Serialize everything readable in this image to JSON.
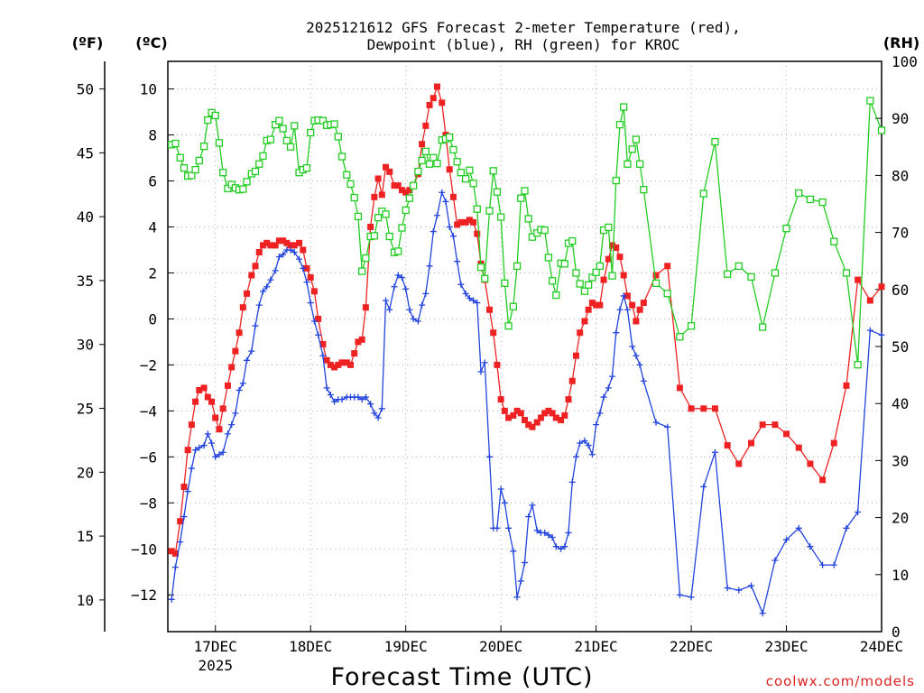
{
  "chart_data": {
    "type": "line",
    "title_line1": "2025121612 GFS Forecast 2-meter Temperature (red),",
    "title_line2": "Dewpoint (blue), RH (green) for KROC",
    "xlabel": "Forecast Time (UTC)",
    "watermark": "coolwx.com/models",
    "left_axis_f_label": "(ºF)",
    "left_axis_c_label": "(ºC)",
    "right_axis_label": "(RH)",
    "x_range_days": [
      16.5,
      24.0
    ],
    "y_range_c": [
      -13.6,
      11.2
    ],
    "y_range_rh": [
      0,
      100
    ],
    "grid": true,
    "x_ticks": [
      {
        "day": 17,
        "label": "17DEC",
        "sub": "2025"
      },
      {
        "day": 18,
        "label": "18DEC",
        "sub": ""
      },
      {
        "day": 19,
        "label": "19DEC",
        "sub": ""
      },
      {
        "day": 20,
        "label": "20DEC",
        "sub": ""
      },
      {
        "day": 21,
        "label": "21DEC",
        "sub": ""
      },
      {
        "day": 22,
        "label": "22DEC",
        "sub": ""
      },
      {
        "day": 23,
        "label": "23DEC",
        "sub": ""
      },
      {
        "day": 24,
        "label": "24DEC",
        "sub": ""
      }
    ],
    "c_ticks": [
      "10",
      "8",
      "6",
      "4",
      "2",
      "0",
      "−2",
      "−4",
      "−6",
      "−8",
      "−10",
      "−12"
    ],
    "f_ticks": [
      "50",
      "45",
      "40",
      "35",
      "30",
      "25",
      "20",
      "15",
      "10"
    ],
    "rh_ticks": [
      "100",
      "90",
      "80",
      "70",
      "60",
      "50",
      "40",
      "30",
      "20",
      "10",
      "0"
    ],
    "series": [
      {
        "name": "Temperature",
        "unit": "C",
        "color": "#ee2222",
        "marker": "filled-square",
        "x": [
          16.54,
          16.58,
          16.63,
          16.67,
          16.71,
          16.75,
          16.79,
          16.83,
          16.88,
          16.92,
          16.96,
          17.0,
          17.04,
          17.08,
          17.13,
          17.17,
          17.21,
          17.25,
          17.29,
          17.33,
          17.38,
          17.42,
          17.46,
          17.5,
          17.54,
          17.58,
          17.63,
          17.67,
          17.71,
          17.75,
          17.79,
          17.83,
          17.88,
          17.92,
          17.96,
          18.0,
          18.04,
          18.08,
          18.13,
          18.17,
          18.21,
          18.25,
          18.29,
          18.33,
          18.38,
          18.42,
          18.46,
          18.5,
          18.54,
          18.58,
          18.63,
          18.67,
          18.71,
          18.75,
          18.79,
          18.83,
          18.88,
          18.92,
          18.96,
          19.0,
          19.04,
          19.08,
          19.13,
          19.17,
          19.21,
          19.25,
          19.29,
          19.33,
          19.38,
          19.42,
          19.46,
          19.5,
          19.54,
          19.58,
          19.63,
          19.67,
          19.71,
          19.75,
          19.79,
          19.83,
          19.88,
          19.92,
          19.96,
          20.0,
          20.04,
          20.08,
          20.13,
          20.17,
          20.21,
          20.25,
          20.29,
          20.33,
          20.38,
          20.42,
          20.46,
          20.5,
          20.54,
          20.58,
          20.63,
          20.67,
          20.71,
          20.75,
          20.79,
          20.83,
          20.88,
          20.92,
          20.96,
          21.0,
          21.04,
          21.08,
          21.13,
          21.17,
          21.21,
          21.25,
          21.29,
          21.33,
          21.38,
          21.42,
          21.46,
          21.5,
          21.63,
          21.75,
          21.88,
          22.0,
          22.13,
          22.25,
          22.38,
          22.5,
          22.63,
          22.75,
          22.88,
          23.0,
          23.13,
          23.25,
          23.38,
          23.5,
          23.63,
          23.75,
          23.88,
          24.0
        ],
        "values": [
          -10.1,
          -10.2,
          -8.8,
          -7.3,
          -5.7,
          -4.6,
          -3.6,
          -3.1,
          -3.0,
          -3.4,
          -3.6,
          -4.3,
          -4.8,
          -3.9,
          -2.9,
          -2.1,
          -1.4,
          -0.6,
          0.5,
          1.1,
          1.9,
          2.3,
          2.9,
          3.2,
          3.3,
          3.2,
          3.2,
          3.4,
          3.4,
          3.3,
          3.2,
          3.2,
          3.3,
          3.0,
          2.2,
          1.8,
          1.2,
          0.0,
          -1.1,
          -1.8,
          -2.0,
          -2.1,
          -2.0,
          -1.9,
          -1.9,
          -2.0,
          -1.5,
          -1.0,
          -0.9,
          0.5,
          4.0,
          5.3,
          6.1,
          5.4,
          6.6,
          6.4,
          5.8,
          5.8,
          5.6,
          5.5,
          5.6,
          5.8,
          6.3,
          7.6,
          8.4,
          9.3,
          9.6,
          10.1,
          9.4,
          8.0,
          6.5,
          5.3,
          4.1,
          4.2,
          4.2,
          4.3,
          4.2,
          3.7,
          2.4,
          1.7,
          0.4,
          -0.6,
          -2.0,
          -3.5,
          -4.0,
          -4.3,
          -4.2,
          -4.0,
          -4.1,
          -4.4,
          -4.6,
          -4.7,
          -4.5,
          -4.3,
          -4.1,
          -4.0,
          -4.1,
          -4.3,
          -4.4,
          -4.2,
          -3.5,
          -2.7,
          -1.6,
          -0.6,
          -0.1,
          0.4,
          0.7,
          0.6,
          0.6,
          1.7,
          2.6,
          3.2,
          3.1,
          2.7,
          1.9,
          1.0,
          0.6,
          -0.1,
          0.4,
          0.7,
          1.9,
          2.3,
          -3.0,
          -3.9,
          -3.9,
          -3.9,
          -5.5,
          -6.3,
          -5.4,
          -4.6,
          -4.6,
          -5.0,
          -5.6,
          -6.3,
          -7.0,
          -5.4,
          -2.9,
          1.7,
          0.8,
          1.4
        ]
      },
      {
        "name": "Dewpoint",
        "unit": "C",
        "color": "#2244dd",
        "marker": "plus",
        "x": [
          16.54,
          16.58,
          16.63,
          16.67,
          16.71,
          16.75,
          16.79,
          16.83,
          16.88,
          16.92,
          16.96,
          17.0,
          17.04,
          17.08,
          17.13,
          17.17,
          17.21,
          17.25,
          17.29,
          17.33,
          17.38,
          17.42,
          17.46,
          17.5,
          17.54,
          17.58,
          17.63,
          17.67,
          17.71,
          17.75,
          17.79,
          17.83,
          17.88,
          17.92,
          17.96,
          18.0,
          18.04,
          18.08,
          18.13,
          18.17,
          18.21,
          18.25,
          18.29,
          18.33,
          18.38,
          18.42,
          18.46,
          18.5,
          18.54,
          18.58,
          18.63,
          18.67,
          18.71,
          18.75,
          18.79,
          18.83,
          18.88,
          18.92,
          18.96,
          19.0,
          19.04,
          19.08,
          19.13,
          19.17,
          19.21,
          19.25,
          19.29,
          19.33,
          19.38,
          19.42,
          19.46,
          19.5,
          19.54,
          19.58,
          19.63,
          19.67,
          19.71,
          19.75,
          19.79,
          19.83,
          19.88,
          19.92,
          19.96,
          20.0,
          20.04,
          20.08,
          20.13,
          20.17,
          20.21,
          20.25,
          20.29,
          20.33,
          20.38,
          20.42,
          20.46,
          20.5,
          20.54,
          20.58,
          20.63,
          20.67,
          20.71,
          20.75,
          20.79,
          20.83,
          20.88,
          20.92,
          20.96,
          21.0,
          21.04,
          21.08,
          21.13,
          21.17,
          21.21,
          21.25,
          21.29,
          21.33,
          21.38,
          21.42,
          21.46,
          21.5,
          21.63,
          21.75,
          21.88,
          22.0,
          22.13,
          22.25,
          22.38,
          22.5,
          22.63,
          22.75,
          22.88,
          23.0,
          23.13,
          23.25,
          23.38,
          23.5,
          23.63,
          23.75,
          23.88,
          24.0
        ],
        "values": [
          -12.2,
          -10.8,
          -9.7,
          -8.6,
          -7.5,
          -6.5,
          -5.7,
          -5.6,
          -5.5,
          -5.0,
          -5.4,
          -6.0,
          -5.9,
          -5.8,
          -5.0,
          -4.6,
          -4.1,
          -3.1,
          -2.8,
          -1.8,
          -1.4,
          -0.3,
          0.6,
          1.2,
          1.4,
          1.7,
          2.1,
          2.7,
          2.8,
          3.0,
          3.0,
          2.9,
          2.6,
          2.2,
          1.6,
          0.7,
          -0.1,
          -0.7,
          -1.6,
          -3.0,
          -3.3,
          -3.6,
          -3.5,
          -3.5,
          -3.4,
          -3.4,
          -3.4,
          -3.4,
          -3.5,
          -3.4,
          -3.7,
          -4.1,
          -4.3,
          -3.9,
          0.8,
          0.4,
          1.4,
          1.9,
          1.8,
          1.3,
          0.4,
          0.0,
          -0.1,
          0.6,
          1.1,
          2.3,
          3.8,
          4.5,
          5.5,
          5.1,
          4.0,
          3.6,
          2.5,
          1.5,
          1.1,
          0.9,
          0.8,
          0.7,
          -2.3,
          -1.9,
          -6.0,
          -9.1,
          -9.1,
          -7.4,
          -8.0,
          -9.1,
          -10.1,
          -12.1,
          -11.4,
          -10.6,
          -8.6,
          -8.1,
          -9.2,
          -9.3,
          -9.3,
          -9.4,
          -9.5,
          -9.9,
          -10.0,
          -9.9,
          -9.3,
          -7.1,
          -6.0,
          -5.4,
          -5.3,
          -5.5,
          -5.9,
          -4.6,
          -4.1,
          -3.4,
          -3.0,
          -2.5,
          -0.6,
          0.4,
          1.0,
          0.4,
          -1.2,
          -1.6,
          -2.0,
          -2.7,
          -4.5,
          -4.7,
          -12.0,
          -12.1,
          -7.3,
          -5.8,
          -11.7,
          -11.8,
          -11.6,
          -12.8,
          -10.5,
          -9.6,
          -9.1,
          -9.9,
          -10.7,
          -10.7,
          -9.1,
          -8.4,
          -0.5,
          -0.7
        ]
      },
      {
        "name": "RH",
        "unit": "percent",
        "color": "#22cc22",
        "marker": "open-square",
        "x": [
          16.54,
          16.58,
          16.63,
          16.67,
          16.71,
          16.75,
          16.79,
          16.83,
          16.88,
          16.92,
          16.96,
          17.0,
          17.04,
          17.08,
          17.13,
          17.17,
          17.21,
          17.25,
          17.29,
          17.33,
          17.38,
          17.42,
          17.46,
          17.5,
          17.54,
          17.58,
          17.63,
          17.67,
          17.71,
          17.75,
          17.79,
          17.83,
          17.88,
          17.92,
          17.96,
          18.0,
          18.04,
          18.08,
          18.13,
          18.17,
          18.21,
          18.25,
          18.29,
          18.33,
          18.38,
          18.42,
          18.46,
          18.5,
          18.54,
          18.58,
          18.63,
          18.67,
          18.71,
          18.75,
          18.79,
          18.83,
          18.88,
          18.92,
          18.96,
          19.0,
          19.04,
          19.08,
          19.13,
          19.17,
          19.21,
          19.25,
          19.29,
          19.33,
          19.38,
          19.42,
          19.46,
          19.5,
          19.54,
          19.58,
          19.63,
          19.67,
          19.71,
          19.75,
          19.79,
          19.83,
          19.88,
          19.92,
          19.96,
          20.0,
          20.04,
          20.08,
          20.13,
          20.17,
          20.21,
          20.25,
          20.29,
          20.33,
          20.38,
          20.42,
          20.46,
          20.5,
          20.54,
          20.58,
          20.63,
          20.67,
          20.71,
          20.75,
          20.79,
          20.83,
          20.88,
          20.92,
          20.96,
          21.0,
          21.04,
          21.08,
          21.13,
          21.17,
          21.21,
          21.25,
          21.29,
          21.33,
          21.38,
          21.42,
          21.46,
          21.5,
          21.63,
          21.75,
          21.88,
          22.0,
          22.13,
          22.25,
          22.38,
          22.5,
          22.63,
          22.75,
          22.88,
          23.0,
          23.13,
          23.25,
          23.38,
          23.5,
          23.63,
          23.75,
          23.88,
          24.0
        ],
        "values": [
          85.4,
          85.6,
          83.1,
          81.3,
          79.9,
          80.0,
          81.0,
          82.6,
          85.1,
          89.7,
          91.0,
          90.5,
          85.7,
          80.5,
          77.7,
          78.4,
          77.8,
          77.5,
          77.6,
          78.9,
          80.3,
          80.7,
          82.0,
          83.4,
          86.1,
          86.3,
          88.9,
          89.6,
          88.2,
          86.1,
          85.0,
          88.7,
          80.5,
          81.0,
          81.3,
          87.5,
          89.6,
          89.7,
          89.6,
          88.8,
          88.9,
          89.0,
          86.8,
          83.3,
          80.1,
          78.5,
          76.1,
          72.8,
          63.2,
          65.5,
          69.3,
          69.4,
          72.6,
          73.7,
          73.2,
          69.3,
          66.5,
          66.7,
          70.8,
          73.9,
          76.0,
          78.2,
          80.7,
          82.6,
          84.2,
          82.0,
          83.1,
          82.1,
          86.2,
          86.4,
          86.7,
          84.5,
          82.4,
          80.5,
          79.4,
          80.9,
          78.6,
          74.1,
          63.9,
          61.9,
          73.8,
          80.8,
          77.1,
          72.7,
          61.1,
          53.6,
          57.0,
          64.1,
          76.0,
          77.3,
          72.4,
          69.2,
          69.9,
          70.5,
          70.4,
          65.6,
          61.5,
          59.0,
          64.6,
          64.5,
          68.1,
          68.5,
          62.9,
          61.0,
          59.7,
          60.8,
          62.1,
          63.0,
          64.1,
          70.4,
          70.9,
          62.4,
          79.1,
          88.9,
          92.0,
          82.0,
          84.6,
          86.3,
          82.0,
          77.5,
          61.1,
          59.3,
          51.7,
          53.6,
          76.8,
          85.9,
          62.7,
          64.1,
          62.2,
          53.4,
          62.9,
          70.7,
          76.9,
          75.8,
          75.3,
          68.4,
          62.9,
          46.8,
          93.1,
          87.9
        ]
      }
    ]
  }
}
